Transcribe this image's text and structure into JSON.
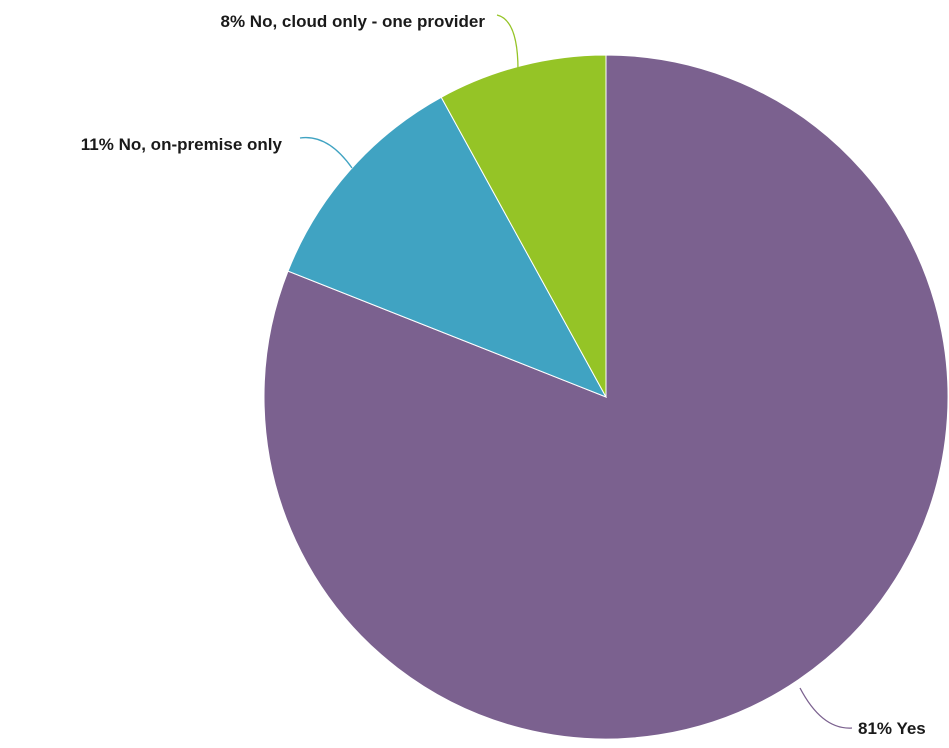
{
  "chart_data": {
    "type": "pie",
    "slices": [
      {
        "label": "Yes",
        "value": 81,
        "display": "81% Yes",
        "color": "#7b618f"
      },
      {
        "label": "No, on-premise only",
        "value": 11,
        "display": "11% No, on-premise only",
        "color": "#40a3c2"
      },
      {
        "label": "No, cloud only - one provider",
        "value": 8,
        "display": "8% No, cloud only - one provider",
        "color": "#95c426"
      }
    ],
    "legend": "none",
    "data_labels": "outside with leader lines"
  }
}
